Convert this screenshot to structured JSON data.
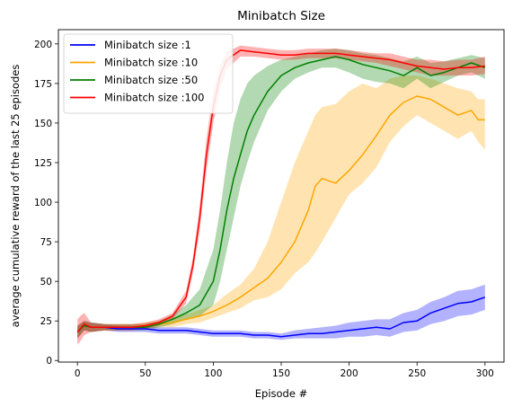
{
  "chart_data": {
    "type": "line",
    "title": "Minibatch Size",
    "xlabel": "Episode #",
    "ylabel": "average cumulative reward of the last 25 episodes",
    "xlim": [
      -14,
      314
    ],
    "ylim": [
      -1,
      209
    ],
    "xticks": [
      0,
      50,
      100,
      150,
      200,
      250,
      300
    ],
    "yticks": [
      0,
      25,
      50,
      75,
      100,
      125,
      150,
      175,
      200
    ],
    "grid": false,
    "legend_position": "top-left",
    "series": [
      {
        "name": "Minibatch size :1",
        "color": "#0000ff",
        "x": [
          0,
          5,
          10,
          20,
          30,
          40,
          50,
          60,
          70,
          80,
          90,
          100,
          110,
          120,
          130,
          140,
          150,
          160,
          170,
          180,
          190,
          200,
          210,
          220,
          230,
          240,
          250,
          260,
          270,
          280,
          290,
          300
        ],
        "mean": [
          18,
          22,
          21,
          21,
          20,
          20,
          20,
          19,
          19,
          19,
          18,
          17,
          17,
          17,
          16,
          16,
          15,
          16,
          17,
          17,
          18,
          19,
          20,
          21,
          20,
          24,
          25,
          30,
          33,
          36,
          37,
          40
        ],
        "lower": [
          14,
          19,
          18,
          19,
          18,
          18,
          18,
          17,
          17,
          17,
          16,
          15,
          15,
          15,
          14,
          14,
          13,
          14,
          14,
          14,
          14,
          15,
          15,
          16,
          15,
          18,
          19,
          23,
          25,
          28,
          29,
          32
        ],
        "upper": [
          22,
          25,
          24,
          23,
          22,
          22,
          22,
          21,
          21,
          21,
          20,
          19,
          19,
          19,
          18,
          18,
          17,
          19,
          20,
          21,
          22,
          24,
          25,
          26,
          26,
          30,
          32,
          37,
          40,
          44,
          45,
          48
        ]
      },
      {
        "name": "Minibatch size :10",
        "color": "#ffa500",
        "x": [
          0,
          5,
          10,
          20,
          30,
          40,
          50,
          60,
          70,
          80,
          90,
          100,
          110,
          120,
          130,
          140,
          150,
          160,
          170,
          175,
          180,
          190,
          200,
          210,
          220,
          230,
          240,
          250,
          260,
          270,
          280,
          290,
          295,
          300
        ],
        "mean": [
          18,
          22,
          21,
          21,
          21,
          21,
          22,
          23,
          24,
          26,
          28,
          31,
          35,
          40,
          46,
          52,
          62,
          75,
          95,
          110,
          115,
          112,
          120,
          130,
          142,
          155,
          163,
          167,
          165,
          160,
          155,
          158,
          152,
          152
        ],
        "lower": [
          14,
          19,
          18,
          19,
          19,
          19,
          20,
          21,
          21,
          23,
          24,
          27,
          30,
          33,
          38,
          40,
          45,
          55,
          62,
          68,
          75,
          90,
          105,
          112,
          122,
          138,
          148,
          155,
          150,
          145,
          140,
          145,
          138,
          133
        ],
        "upper": [
          22,
          25,
          24,
          23,
          23,
          23,
          24,
          25,
          27,
          29,
          32,
          35,
          42,
          48,
          58,
          75,
          100,
          125,
          145,
          155,
          160,
          162,
          170,
          175,
          172,
          178,
          180,
          180,
          178,
          175,
          172,
          170,
          165,
          165
        ]
      },
      {
        "name": "Minibatch size :50",
        "color": "#008000",
        "x": [
          0,
          5,
          10,
          20,
          30,
          40,
          50,
          60,
          70,
          80,
          90,
          100,
          105,
          110,
          115,
          120,
          125,
          130,
          140,
          150,
          160,
          170,
          180,
          190,
          200,
          210,
          220,
          230,
          240,
          250,
          260,
          270,
          280,
          290,
          300
        ],
        "mean": [
          18,
          22,
          21,
          21,
          21,
          21,
          21,
          23,
          26,
          30,
          35,
          50,
          70,
          95,
          115,
          130,
          145,
          155,
          170,
          180,
          185,
          188,
          190,
          192,
          190,
          187,
          185,
          183,
          180,
          185,
          180,
          182,
          185,
          188,
          185
        ],
        "lower": [
          14,
          19,
          18,
          19,
          19,
          19,
          19,
          21,
          23,
          26,
          28,
          35,
          50,
          70,
          90,
          110,
          125,
          138,
          158,
          170,
          178,
          182,
          185,
          185,
          182,
          178,
          176,
          175,
          172,
          178,
          172,
          176,
          180,
          182,
          178
        ],
        "upper": [
          22,
          25,
          24,
          23,
          23,
          23,
          23,
          25,
          29,
          35,
          45,
          70,
          95,
          125,
          150,
          165,
          175,
          180,
          186,
          190,
          192,
          194,
          196,
          197,
          196,
          194,
          193,
          191,
          189,
          192,
          188,
          189,
          191,
          193,
          191
        ]
      },
      {
        "name": "Minibatch size :100",
        "color": "#ff0000",
        "x": [
          0,
          2,
          5,
          10,
          20,
          30,
          40,
          50,
          60,
          70,
          80,
          85,
          90,
          95,
          100,
          105,
          110,
          120,
          130,
          140,
          150,
          160,
          170,
          180,
          190,
          200,
          210,
          220,
          230,
          240,
          250,
          260,
          270,
          280,
          290,
          300
        ],
        "mean": [
          18,
          20,
          23,
          21,
          21,
          21,
          21,
          22,
          24,
          28,
          40,
          60,
          90,
          130,
          160,
          180,
          190,
          196,
          195,
          194,
          193,
          193,
          194,
          194,
          194,
          193,
          192,
          191,
          190,
          188,
          186,
          185,
          184,
          185,
          185,
          186
        ],
        "lower": [
          10,
          12,
          16,
          18,
          19,
          19,
          19,
          20,
          22,
          26,
          36,
          55,
          82,
          120,
          150,
          172,
          184,
          192,
          192,
          191,
          190,
          190,
          191,
          191,
          191,
          190,
          189,
          188,
          186,
          184,
          182,
          180,
          180,
          180,
          180,
          181
        ],
        "upper": [
          26,
          28,
          30,
          24,
          23,
          23,
          23,
          24,
          26,
          30,
          44,
          65,
          98,
          140,
          170,
          186,
          195,
          199,
          198,
          197,
          196,
          196,
          197,
          197,
          197,
          196,
          195,
          194,
          194,
          192,
          190,
          190,
          189,
          190,
          190,
          192
        ]
      }
    ]
  }
}
